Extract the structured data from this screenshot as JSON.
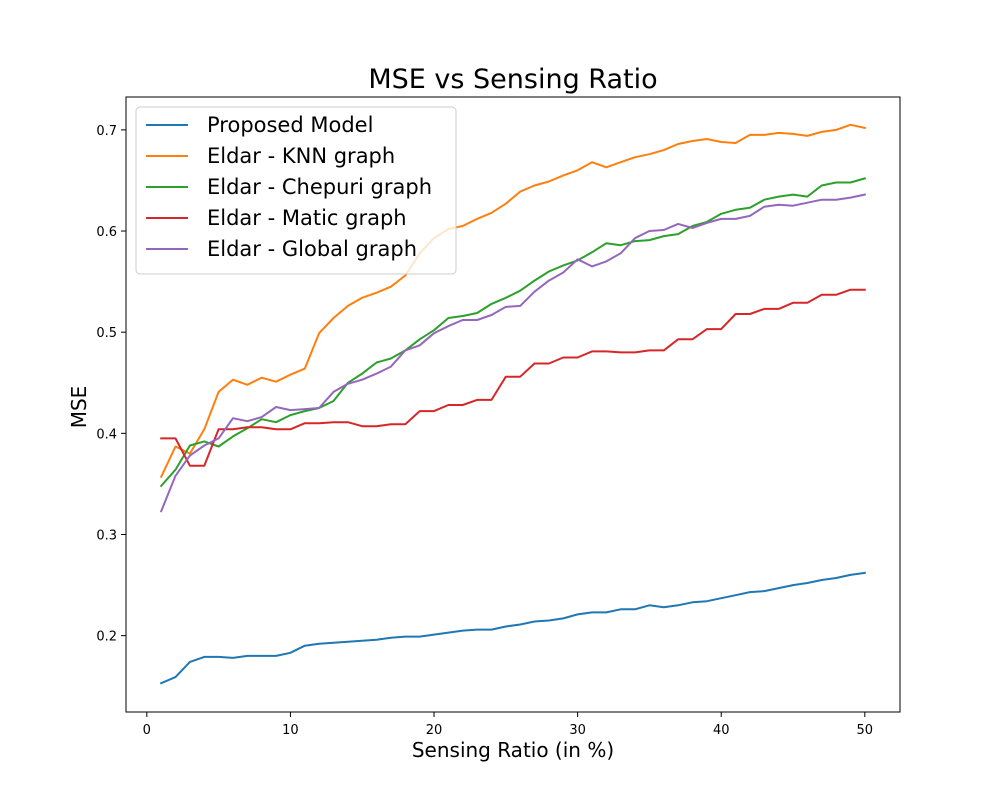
{
  "chart_data": {
    "type": "line",
    "title": "MSE vs Sensing Ratio",
    "xlabel": "Sensing Ratio (in %)",
    "ylabel": "MSE",
    "xlim": [
      -1.45,
      52.45
    ],
    "ylim": [
      0.1245,
      0.7325
    ],
    "xticks": [
      0,
      10,
      20,
      30,
      40,
      50
    ],
    "yticks": [
      0.2,
      0.3,
      0.4,
      0.5,
      0.6,
      0.7
    ],
    "ytick_labels": [
      "0.2",
      "0.3",
      "0.4",
      "0.5",
      "0.6",
      "0.7"
    ],
    "grid": false,
    "legend_position": "top-left",
    "x": [
      1,
      2,
      3,
      4,
      5,
      6,
      7,
      8,
      9,
      10,
      11,
      12,
      13,
      14,
      15,
      16,
      17,
      18,
      19,
      20,
      21,
      22,
      23,
      24,
      25,
      26,
      27,
      28,
      29,
      30,
      31,
      32,
      33,
      34,
      35,
      36,
      37,
      38,
      39,
      40,
      41,
      42,
      43,
      44,
      45,
      46,
      47,
      48,
      49,
      50
    ],
    "series": [
      {
        "name": "Proposed Model",
        "color": "#1f77b4",
        "values": [
          0.153,
          0.159,
          0.174,
          0.179,
          0.179,
          0.178,
          0.18,
          0.18,
          0.18,
          0.183,
          0.19,
          0.192,
          0.193,
          0.194,
          0.195,
          0.196,
          0.198,
          0.199,
          0.199,
          0.201,
          0.203,
          0.205,
          0.206,
          0.206,
          0.209,
          0.211,
          0.214,
          0.215,
          0.217,
          0.221,
          0.223,
          0.223,
          0.226,
          0.226,
          0.23,
          0.228,
          0.23,
          0.233,
          0.234,
          0.237,
          0.24,
          0.243,
          0.244,
          0.247,
          0.25,
          0.252,
          0.255,
          0.257,
          0.26,
          0.262
        ]
      },
      {
        "name": "Eldar - KNN graph",
        "color": "#ff7f0e",
        "values": [
          0.357,
          0.387,
          0.38,
          0.404,
          0.441,
          0.453,
          0.448,
          0.455,
          0.451,
          0.458,
          0.464,
          0.499,
          0.514,
          0.526,
          0.534,
          0.539,
          0.545,
          0.556,
          0.578,
          0.593,
          0.602,
          0.605,
          0.612,
          0.618,
          0.627,
          0.639,
          0.645,
          0.649,
          0.655,
          0.66,
          0.668,
          0.663,
          0.668,
          0.673,
          0.676,
          0.68,
          0.686,
          0.689,
          0.691,
          0.688,
          0.687,
          0.695,
          0.695,
          0.697,
          0.696,
          0.694,
          0.698,
          0.7,
          0.705,
          0.702
        ]
      },
      {
        "name": "Eldar - Chepuri graph",
        "color": "#2ca02c",
        "values": [
          0.348,
          0.364,
          0.388,
          0.392,
          0.387,
          0.397,
          0.405,
          0.414,
          0.411,
          0.418,
          0.422,
          0.425,
          0.432,
          0.45,
          0.459,
          0.47,
          0.474,
          0.482,
          0.493,
          0.502,
          0.514,
          0.516,
          0.519,
          0.528,
          0.534,
          0.541,
          0.551,
          0.56,
          0.566,
          0.571,
          0.579,
          0.588,
          0.586,
          0.59,
          0.591,
          0.595,
          0.597,
          0.605,
          0.609,
          0.617,
          0.621,
          0.623,
          0.631,
          0.634,
          0.636,
          0.634,
          0.645,
          0.648,
          0.648,
          0.652
        ]
      },
      {
        "name": "Eldar - Matic graph",
        "color": "#d62728",
        "values": [
          0.395,
          0.395,
          0.368,
          0.368,
          0.404,
          0.404,
          0.406,
          0.406,
          0.404,
          0.404,
          0.41,
          0.41,
          0.411,
          0.411,
          0.407,
          0.407,
          0.409,
          0.409,
          0.422,
          0.422,
          0.428,
          0.428,
          0.433,
          0.433,
          0.456,
          0.456,
          0.469,
          0.469,
          0.475,
          0.475,
          0.481,
          0.481,
          0.48,
          0.48,
          0.482,
          0.482,
          0.493,
          0.493,
          0.503,
          0.503,
          0.518,
          0.518,
          0.523,
          0.523,
          0.529,
          0.529,
          0.537,
          0.537,
          0.542,
          0.542
        ]
      },
      {
        "name": "Eldar - Global graph",
        "color": "#9467bd",
        "values": [
          0.323,
          0.358,
          0.378,
          0.388,
          0.395,
          0.415,
          0.412,
          0.416,
          0.426,
          0.423,
          0.424,
          0.425,
          0.441,
          0.449,
          0.453,
          0.459,
          0.466,
          0.482,
          0.487,
          0.499,
          0.506,
          0.512,
          0.512,
          0.517,
          0.525,
          0.526,
          0.54,
          0.551,
          0.559,
          0.572,
          0.565,
          0.57,
          0.578,
          0.593,
          0.6,
          0.601,
          0.607,
          0.603,
          0.608,
          0.612,
          0.612,
          0.615,
          0.624,
          0.626,
          0.625,
          0.628,
          0.631,
          0.631,
          0.633,
          0.636
        ]
      }
    ]
  }
}
